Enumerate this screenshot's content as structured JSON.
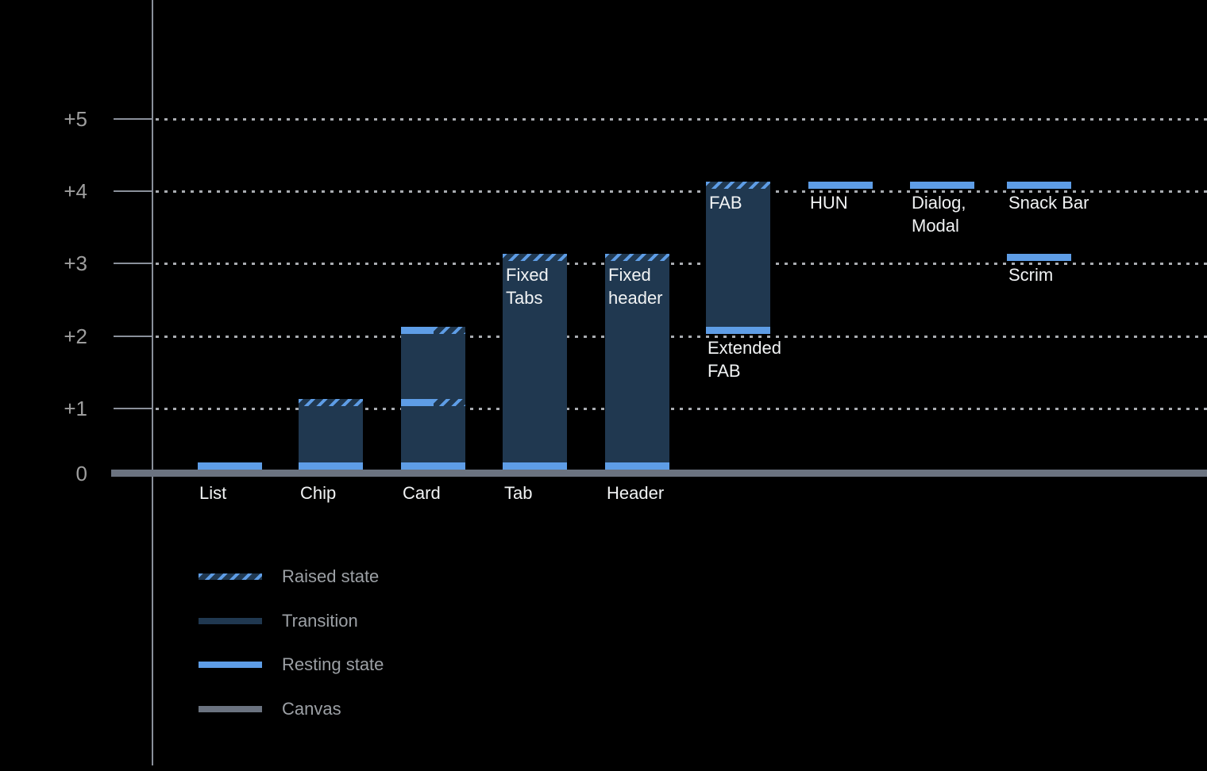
{
  "chart_data": {
    "type": "bar",
    "title": "",
    "y_axis": {
      "grid": "dotted",
      "ticks": [
        {
          "label": "+5",
          "level": 5
        },
        {
          "label": "+4",
          "level": 4
        },
        {
          "label": "+3",
          "level": 3
        },
        {
          "label": "+2",
          "level": 2
        },
        {
          "label": "+1",
          "level": 1
        },
        {
          "label": "0",
          "level": 0
        }
      ]
    },
    "bars": [
      {
        "name": "List",
        "label_lines": [
          "List"
        ],
        "column": 0,
        "resting_level": 0
      },
      {
        "name": "Chip",
        "label_lines": [
          "Chip"
        ],
        "column": 1,
        "resting_level": 0,
        "raised_level": 1,
        "transition": [
          0,
          1
        ]
      },
      {
        "name": "Card",
        "label_lines": [
          "Card"
        ],
        "column": 2,
        "resting_level": 0,
        "transition": [
          0,
          2
        ],
        "split_bands": [
          1,
          2
        ]
      },
      {
        "name": "Tab",
        "label_lines": [
          "Tab"
        ],
        "column": 3,
        "resting_level": 0,
        "raised_level": 3,
        "transition": [
          0,
          3
        ],
        "inner_label_lines": [
          "Fixed",
          "Tabs"
        ]
      },
      {
        "name": "Header",
        "label_lines": [
          "Header"
        ],
        "column": 4,
        "resting_level": 0,
        "raised_level": 3,
        "transition": [
          0,
          3
        ],
        "inner_label_lines": [
          "Fixed",
          "header"
        ]
      },
      {
        "name": "Extended FAB",
        "label_lines": [
          "Extended",
          "FAB"
        ],
        "column": 5,
        "resting_level": 2,
        "raised_level": 4,
        "transition": [
          2,
          4
        ],
        "inner_label_lines": [
          "FAB"
        ]
      },
      {
        "name": "HUN",
        "label_lines": [
          "HUN"
        ],
        "column": 6,
        "resting_level": 4
      },
      {
        "name": "Dialog, Modal",
        "label_lines": [
          "Dialog,",
          "Modal"
        ],
        "column": 7,
        "resting_level": 4
      },
      {
        "name": "Snack Bar",
        "label_lines": [
          "Snack Bar"
        ],
        "column": 8,
        "resting_level": 4
      },
      {
        "name": "Scrim",
        "label_lines": [
          "Scrim"
        ],
        "column": 8,
        "resting_level": 3
      }
    ],
    "legend": {
      "position": "bottom-left",
      "items": [
        {
          "key": "raised",
          "label": "Raised state"
        },
        {
          "key": "transition",
          "label": "Transition"
        },
        {
          "key": "resting",
          "label": "Resting state"
        },
        {
          "key": "canvas",
          "label": "Canvas"
        }
      ]
    },
    "colors": {
      "background": "#000000",
      "transition": "#203850",
      "resting": "#5E9DE6",
      "canvas": "#6B7380",
      "axis": "#8A909A",
      "grid_dots": "#A9ACB1",
      "y_label": "#9E9E9E",
      "bar_label": "#F1F3F4",
      "legend_label": "#9CA0A5"
    }
  }
}
